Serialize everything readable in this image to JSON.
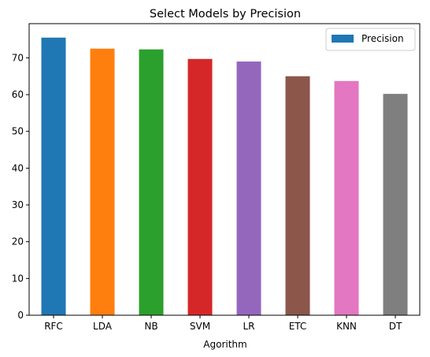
{
  "chart_data": {
    "type": "bar",
    "title": "Select Models by Precision",
    "xlabel": "Agorithm",
    "ylabel": "",
    "categories": [
      "RFC",
      "LDA",
      "NB",
      "SVM",
      "LR",
      "ETC",
      "KNN",
      "DT"
    ],
    "series": [
      {
        "name": "Precision",
        "values": [
          75.5,
          72.5,
          72.3,
          69.7,
          69.0,
          65.0,
          63.7,
          60.2
        ]
      }
    ],
    "colors": [
      "#1f77b4",
      "#ff7f0e",
      "#2ca02c",
      "#d62728",
      "#9467bd",
      "#8c564b",
      "#e377c2",
      "#7f7f7f"
    ],
    "legend_color": "#1f77b4",
    "yticks": [
      0,
      10,
      20,
      30,
      40,
      50,
      60,
      70
    ],
    "ylim": [
      0,
      79.3
    ],
    "grid": false,
    "legend_position": "top-right"
  }
}
